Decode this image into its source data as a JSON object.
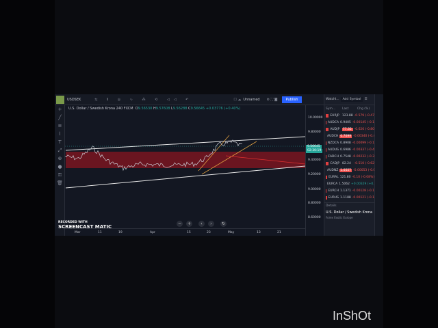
{
  "symbol": "USDSEK",
  "layout_name": "Unnamed",
  "publish": "Publish",
  "legend": {
    "name": "U.S. Dollar / Swedish Krona",
    "interval": "240",
    "source": "FXCM",
    "o": "9.56530",
    "h": "9.57608",
    "l": "9.56288",
    "c": "9.56645",
    "change": "+0.03776 (+0.40%)"
  },
  "price_axis": [
    "10.00000",
    "9.80000",
    "9.40000",
    "9.20000",
    "9.00000",
    "8.80000",
    "8.60000"
  ],
  "last_price": "9.56645",
  "countdown": "02:30:19",
  "time_axis": [
    "Mar",
    "11",
    "19",
    "Apr",
    "15",
    "23",
    "May",
    "13",
    "21"
  ],
  "watchlist": {
    "title": "Watchl...",
    "add": "Add Symbol",
    "headers": [
      "Sym...",
      "Last",
      "Chg (%)"
    ],
    "rows": [
      {
        "s": "EURJP",
        "l": "123.88",
        "c": "-0.579 (-0.47"
      },
      {
        "s": "AUDCA",
        "l": "0.9405",
        "c": "-0.00145 (-0.1"
      },
      {
        "s": "AUDJP",
        "l": "77.35",
        "c": "-0.626 (-0.80"
      },
      {
        "s": "AUDCH",
        "l": "0.7099",
        "c": "-0.00340 (-0.4"
      },
      {
        "s": "NZDCA",
        "l": "0.8908",
        "c": "-0.00099 (-0.1"
      },
      {
        "s": "AUDUS",
        "l": "0.6986",
        "c": "-0.00337 (-0.4"
      },
      {
        "s": "CADCH",
        "l": "0.7548",
        "c": "-0.00232 (-0.3"
      },
      {
        "s": "CADJP",
        "l": "82.24",
        "c": "-0.510 (-0.62"
      },
      {
        "s": "AUDNZ",
        "l": "1.0557",
        "c": "-0.00053 (-0.0"
      },
      {
        "s": "EURAL",
        "l": "121.80",
        "c": "-0.10 (-0.08%)"
      },
      {
        "s": "EURCA",
        "l": "1.5062",
        "c": "+0.00329 (+0.2"
      },
      {
        "s": "EURCH",
        "l": "1.1371",
        "c": "-0.00128 (-0.1"
      },
      {
        "s": "EURUS",
        "l": "1.1188",
        "c": "-0.00121 (-0.1"
      }
    ],
    "details": "Details",
    "detail_name": "U.S. Dollar / Swedish Krona",
    "detail_sub": "Forex Exotic Europe"
  },
  "watermark": {
    "recorded": "RECORDED WITH",
    "brand": "SCREENCAST MATIC"
  },
  "inshot": "InShOt"
}
